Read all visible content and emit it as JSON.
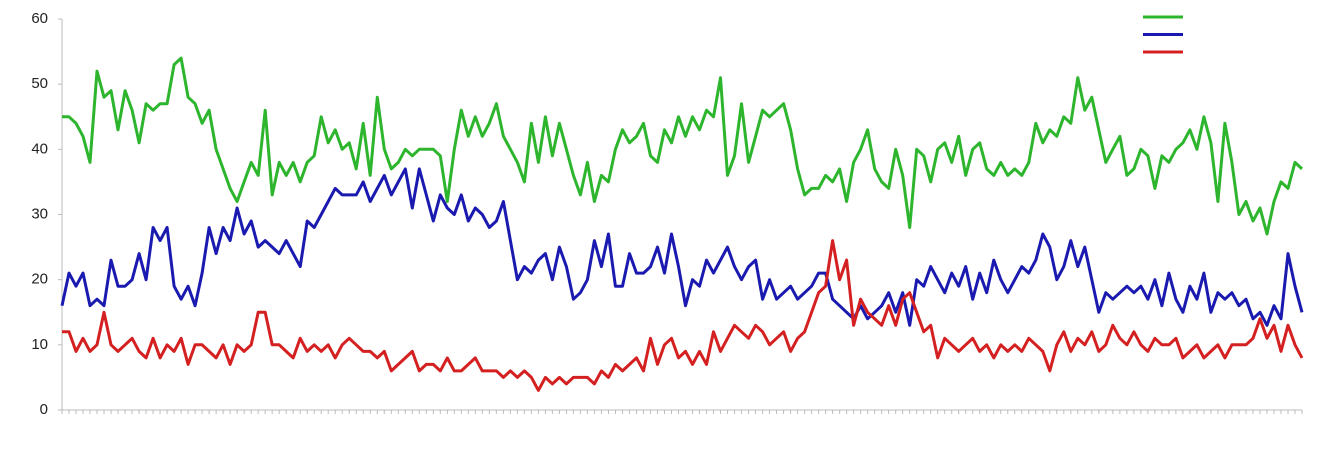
{
  "chart_data": {
    "type": "line",
    "categories": [
      null,
      null,
      null,
      null,
      null,
      null,
      null,
      null,
      null,
      null,
      null,
      null,
      null,
      null,
      null,
      null,
      null,
      null,
      null,
      null,
      null,
      null,
      null,
      null,
      null,
      null,
      null,
      null,
      null,
      null,
      null,
      null,
      null,
      null,
      null,
      null,
      null,
      null,
      null,
      null,
      null,
      null,
      null,
      null,
      null,
      null,
      null,
      null,
      null,
      null,
      null,
      null,
      null,
      null,
      null,
      null,
      null,
      null,
      null,
      null,
      null,
      null,
      null,
      null,
      null,
      null,
      null,
      null,
      null,
      null,
      null,
      null,
      null,
      null,
      null,
      null,
      null,
      null,
      null,
      null,
      null,
      null,
      null,
      null,
      null,
      null,
      null,
      null,
      null,
      null,
      null,
      null,
      null,
      null,
      null,
      null,
      null,
      null,
      null,
      null,
      null,
      null,
      null,
      null,
      null,
      null,
      null,
      null,
      null,
      null,
      null,
      null,
      null,
      null,
      null,
      null,
      null,
      null,
      null,
      null,
      null,
      null,
      null,
      null,
      null,
      null,
      null,
      null,
      null,
      null,
      null,
      null,
      null,
      null,
      null,
      null,
      null,
      null,
      null,
      null,
      null,
      null,
      null,
      null,
      null,
      null,
      null,
      null,
      null,
      null,
      null,
      null,
      null,
      null,
      null,
      null,
      null,
      null,
      null,
      null,
      null,
      null,
      null,
      null,
      null,
      null,
      null,
      null,
      null,
      null,
      null,
      null,
      null,
      null,
      null,
      null,
      null,
      null
    ],
    "series": [
      {
        "color": "#2db52d",
        "values": [
          45,
          45,
          44,
          42,
          38,
          52,
          48,
          49,
          43,
          49,
          46,
          41,
          47,
          46,
          47,
          47,
          53,
          54,
          48,
          47,
          44,
          46,
          40,
          37,
          34,
          32,
          35,
          38,
          36,
          46,
          33,
          38,
          36,
          38,
          35,
          38,
          39,
          45,
          41,
          43,
          40,
          41,
          37,
          44,
          36,
          48,
          40,
          37,
          38,
          40,
          39,
          40,
          40,
          40,
          39,
          32,
          40,
          46,
          42,
          45,
          42,
          44,
          47,
          42,
          40,
          38,
          35,
          44,
          38,
          45,
          39,
          44,
          40,
          36,
          33,
          38,
          32,
          36,
          35,
          40,
          43,
          41,
          42,
          44,
          39,
          38,
          43,
          41,
          45,
          42,
          45,
          43,
          46,
          45,
          51,
          36,
          39,
          47,
          38,
          42,
          46,
          45,
          46,
          47,
          43,
          37,
          33,
          34,
          34,
          36,
          35,
          37,
          32,
          38,
          40,
          43,
          37,
          35,
          34,
          40,
          36,
          28,
          40,
          39,
          35,
          40,
          41,
          38,
          42,
          36,
          40,
          41,
          37,
          36,
          38,
          36,
          37,
          36,
          38,
          44,
          41,
          43,
          42,
          45,
          44,
          51,
          46,
          48,
          43,
          38,
          40,
          42,
          36,
          37,
          40,
          39,
          34,
          39,
          38,
          40,
          41,
          43,
          40,
          45,
          41,
          32,
          44,
          38,
          30,
          32,
          29,
          31,
          27,
          32,
          35,
          34,
          38,
          37
        ]
      },
      {
        "color": "#1a1ab0",
        "values": [
          16,
          21,
          19,
          21,
          16,
          17,
          16,
          23,
          19,
          19,
          20,
          24,
          20,
          28,
          26,
          28,
          19,
          17,
          19,
          16,
          21,
          28,
          24,
          28,
          26,
          31,
          27,
          29,
          25,
          26,
          25,
          24,
          26,
          24,
          22,
          29,
          28,
          30,
          32,
          34,
          33,
          33,
          33,
          35,
          32,
          34,
          36,
          33,
          35,
          37,
          31,
          37,
          33,
          29,
          33,
          31,
          30,
          33,
          29,
          31,
          30,
          28,
          29,
          32,
          26,
          20,
          22,
          21,
          23,
          24,
          20,
          25,
          22,
          17,
          18,
          20,
          26,
          22,
          27,
          19,
          19,
          24,
          21,
          21,
          22,
          25,
          21,
          27,
          22,
          16,
          20,
          19,
          23,
          21,
          23,
          25,
          22,
          20,
          22,
          23,
          17,
          20,
          17,
          18,
          19,
          17,
          18,
          19,
          21,
          21,
          17,
          16,
          15,
          14,
          16,
          14,
          15,
          16,
          18,
          15,
          18,
          13,
          20,
          19,
          22,
          20,
          18,
          21,
          19,
          22,
          17,
          21,
          18,
          23,
          20,
          18,
          20,
          22,
          21,
          23,
          27,
          25,
          20,
          22,
          26,
          22,
          25,
          20,
          15,
          18,
          17,
          18,
          19,
          18,
          19,
          17,
          20,
          16,
          21,
          17,
          15,
          19,
          17,
          21,
          15,
          18,
          17,
          18,
          16,
          17,
          14,
          15,
          13,
          16,
          14,
          24,
          19,
          15
        ]
      },
      {
        "color": "#d42020",
        "values": [
          12,
          12,
          9,
          11,
          9,
          10,
          15,
          10,
          9,
          10,
          11,
          9,
          8,
          11,
          8,
          10,
          9,
          11,
          7,
          10,
          10,
          9,
          8,
          10,
          7,
          10,
          9,
          10,
          15,
          15,
          10,
          10,
          9,
          8,
          11,
          9,
          10,
          9,
          10,
          8,
          10,
          11,
          10,
          9,
          9,
          8,
          9,
          6,
          7,
          8,
          9,
          6,
          7,
          7,
          6,
          8,
          6,
          6,
          7,
          8,
          6,
          6,
          6,
          5,
          6,
          5,
          6,
          5,
          3,
          5,
          4,
          5,
          4,
          5,
          5,
          5,
          4,
          6,
          5,
          7,
          6,
          7,
          8,
          6,
          11,
          7,
          10,
          11,
          8,
          9,
          7,
          9,
          7,
          12,
          9,
          11,
          13,
          12,
          11,
          13,
          12,
          10,
          11,
          12,
          9,
          11,
          12,
          15,
          18,
          19,
          26,
          20,
          23,
          13,
          17,
          15,
          14,
          13,
          16,
          13,
          17,
          18,
          15,
          12,
          13,
          8,
          11,
          10,
          9,
          10,
          11,
          9,
          10,
          8,
          10,
          9,
          10,
          9,
          11,
          10,
          9,
          6,
          10,
          12,
          9,
          11,
          10,
          12,
          9,
          10,
          13,
          11,
          10,
          12,
          10,
          9,
          11,
          10,
          10,
          11,
          8,
          9,
          10,
          8,
          9,
          10,
          8,
          10,
          10,
          10,
          11,
          14,
          11,
          13,
          9,
          13,
          10,
          8
        ]
      }
    ],
    "ylim": [
      0,
      60
    ],
    "yticks": [
      0,
      10,
      20,
      30,
      40,
      50,
      60
    ],
    "legend": "upper right"
  }
}
